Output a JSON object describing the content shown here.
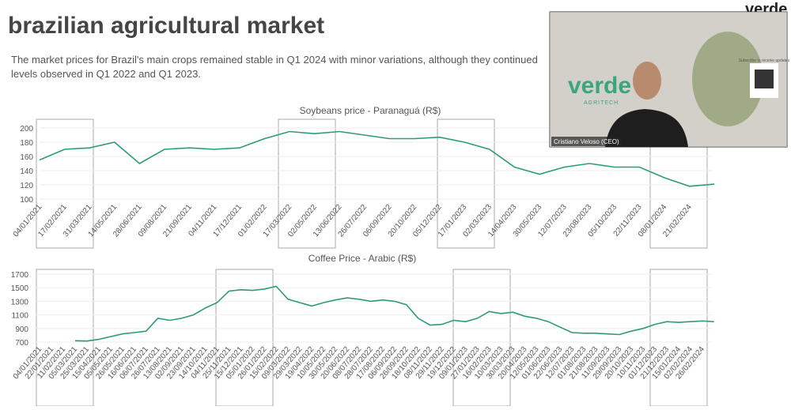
{
  "slide": {
    "title": "brazilian agricultural market",
    "subtitle": [
      "The market prices for Brazil's main crops remained stable in Q1 2024 with minor variations, although they continued",
      "levels observed in Q1 2022 and Q1 2023."
    ],
    "brand": "verde"
  },
  "video": {
    "logo": "verde",
    "tagline": "AGRITECH",
    "speaker": "Cristiano Veloso (CEO)",
    "qr_caption": "Subscribe to receive updates"
  },
  "chart_data": [
    {
      "type": "line",
      "title": "Soybeans price - Paranaguá (R$)",
      "color": "#2e9b77",
      "categories": [
        "04/01/2021",
        "17/02/2021",
        "31/03/2021",
        "14/05/2021",
        "28/06/2021",
        "09/08/2021",
        "21/09/2021",
        "04/11/2021",
        "17/12/2021",
        "01/02/2022",
        "17/03/2022",
        "02/05/2022",
        "13/06/2022",
        "26/07/2022",
        "06/09/2022",
        "20/10/2022",
        "05/12/2022",
        "17/01/2023",
        "02/03/2023",
        "14/04/2023",
        "30/05/2023",
        "12/07/2023",
        "23/08/2023",
        "05/10/2023",
        "22/11/2023",
        "08/01/2024",
        "21/02/2024",
        null
      ],
      "values": [
        155,
        170,
        172,
        180,
        150,
        170,
        172,
        170,
        172,
        185,
        195,
        192,
        195,
        190,
        185,
        185,
        187,
        180,
        170,
        145,
        135,
        145,
        150,
        145,
        145,
        130,
        118,
        121
      ],
      "ylim": [
        95,
        205
      ],
      "yticks": [
        100,
        120,
        140,
        160,
        180,
        200
      ],
      "grid": true
    },
    {
      "type": "line",
      "title": "Coffee Price - Arabic (R$)",
      "color": "#2e9b77",
      "categories": [
        "04/01/2021",
        "22/01/2021",
        "11/02/2021",
        "05/03/2021",
        "25/03/2021",
        "15/04/2021",
        "05/05/2021",
        "26/05/2021",
        "16/06/2021",
        "06/07/2021",
        "26/07/2021",
        "13/08/2021",
        "02/09/2021",
        "23/09/2021",
        "14/10/2021",
        "04/11/2021",
        "25/11/2021",
        "15/12/2021",
        "05/01/2022",
        "26/01/2022",
        "15/02/2022",
        "09/03/2022",
        "29/03/2022",
        "19/04/2022",
        "10/05/2022",
        "30/05/2022",
        "20/06/2022",
        "08/07/2022",
        "28/07/2022",
        "17/08/2022",
        "06/09/2022",
        "26/09/2022",
        "18/10/2022",
        "08/11/2022",
        "29/11/2022",
        "19/12/2022",
        "09/01/2023",
        "27/01/2023",
        "16/02/2023",
        "10/03/2023",
        "30/03/2023",
        "20/04/2023",
        "12/05/2023",
        "01/06/2023",
        "22/06/2023",
        "12/07/2023",
        "01/08/2023",
        "21/08/2023",
        "11/09/2023",
        "29/09/2023",
        "20/10/2023",
        "10/11/2023",
        "01/12/2023",
        "21/12/2023",
        "15/01/2024",
        "02/02/2024",
        "26/02/2024",
        null
      ],
      "values": [
        null,
        null,
        null,
        720,
        715,
        740,
        780,
        820,
        840,
        860,
        1050,
        1020,
        1050,
        1100,
        1200,
        1280,
        1450,
        1470,
        1460,
        1480,
        1520,
        1330,
        1280,
        1230,
        1280,
        1320,
        1350,
        1330,
        1300,
        1320,
        1300,
        1250,
        1050,
        950,
        960,
        1020,
        1000,
        1050,
        1150,
        1120,
        1140,
        1080,
        1050,
        1000,
        920,
        840,
        830,
        830,
        820,
        810,
        860,
        900,
        960,
        1000,
        990,
        1000,
        1010,
        1000
      ],
      "ylim": [
        650,
        1750
      ],
      "yticks": [
        700,
        900,
        1100,
        1300,
        1500,
        1700
      ],
      "grid": true
    }
  ]
}
